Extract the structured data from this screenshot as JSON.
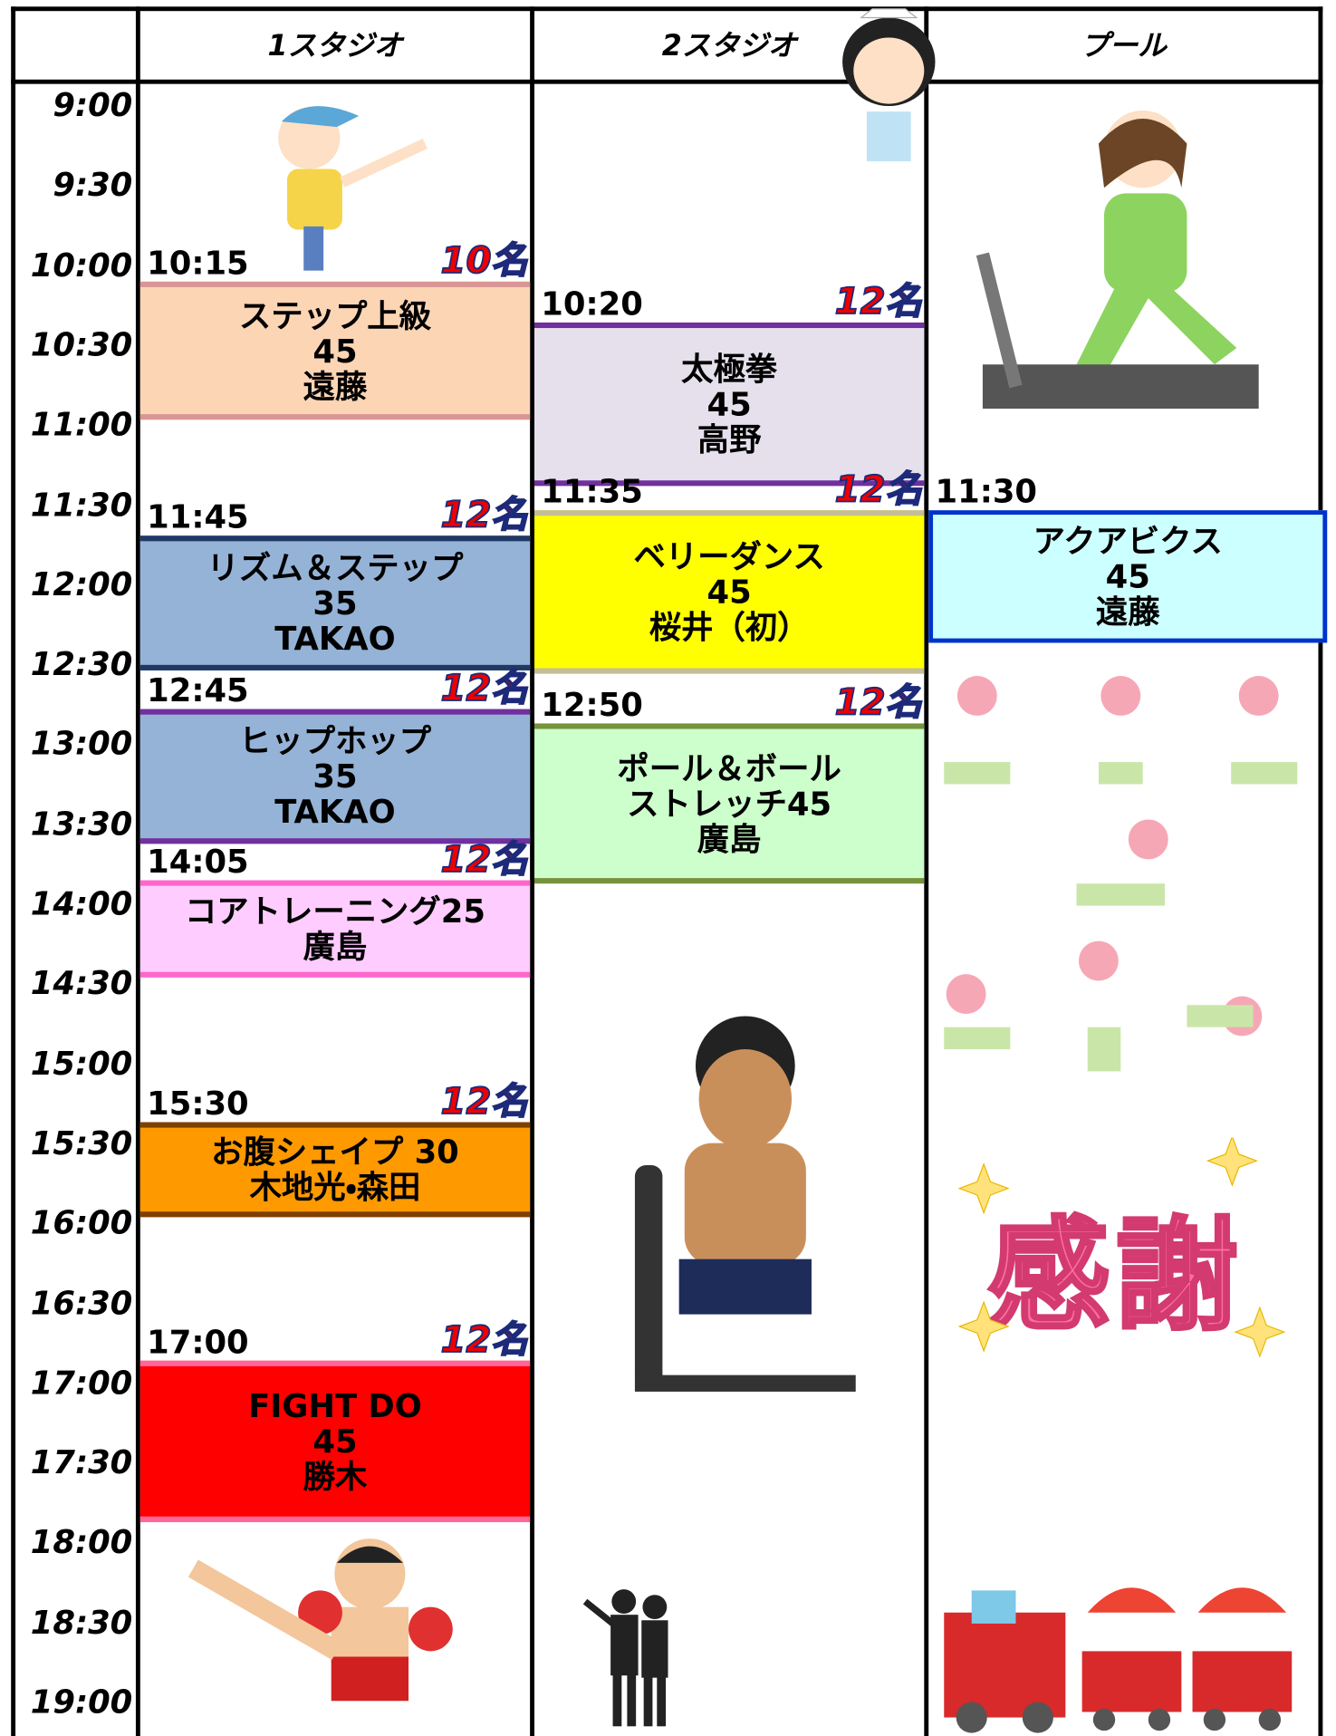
{
  "header": {
    "columns": [
      "1スタジオ",
      "2スタジオ",
      "プール"
    ]
  },
  "times": [
    "9:00",
    "9:30",
    "10:00",
    "10:30",
    "11:00",
    "11:30",
    "12:00",
    "12:30",
    "13:00",
    "13:30",
    "14:00",
    "14:30",
    "15:00",
    "15:30",
    "16:00",
    "16:30",
    "17:00",
    "17:30",
    "18:00",
    "18:30",
    "19:00"
  ],
  "studios": [
    {
      "classes": [
        {
          "start": "10:15",
          "capacity": "10名",
          "lines": [
            "ステップ上級",
            "45",
            "遠藤"
          ]
        },
        {
          "start": "11:45",
          "capacity": "12名",
          "lines": [
            "リズム＆ステップ",
            "35",
            "TAKAO"
          ]
        },
        {
          "start": "12:45",
          "capacity": "12名",
          "lines": [
            "ヒップホップ",
            "35",
            "TAKAO"
          ]
        },
        {
          "start": "14:05",
          "capacity": "12名",
          "lines": [
            "コアトレーニング25",
            "廣島"
          ]
        },
        {
          "start": "15:30",
          "capacity": "12名",
          "lines": [
            "お腹シェイプ 30",
            "木地光・森田"
          ]
        },
        {
          "start": "17:00",
          "capacity": "12名",
          "lines": [
            "FIGHT DO",
            "45",
            "勝木"
          ]
        }
      ]
    },
    {
      "classes": [
        {
          "start": "10:20",
          "capacity": "12名",
          "lines": [
            "太極拳",
            "45",
            "高野"
          ]
        },
        {
          "start": "11:35",
          "capacity": "12名",
          "lines": [
            "ベリーダンス",
            "45",
            "桜井（初）"
          ]
        },
        {
          "start": "12:50",
          "capacity": "12名",
          "lines": [
            "ポール＆ボール",
            "ストレッチ45",
            "廣島"
          ]
        }
      ]
    },
    {
      "classes": [
        {
          "start": "11:30",
          "lines": [
            "アクアビクス",
            "45",
            "遠藤"
          ]
        }
      ]
    }
  ],
  "decoration": {
    "text": "感謝"
  }
}
